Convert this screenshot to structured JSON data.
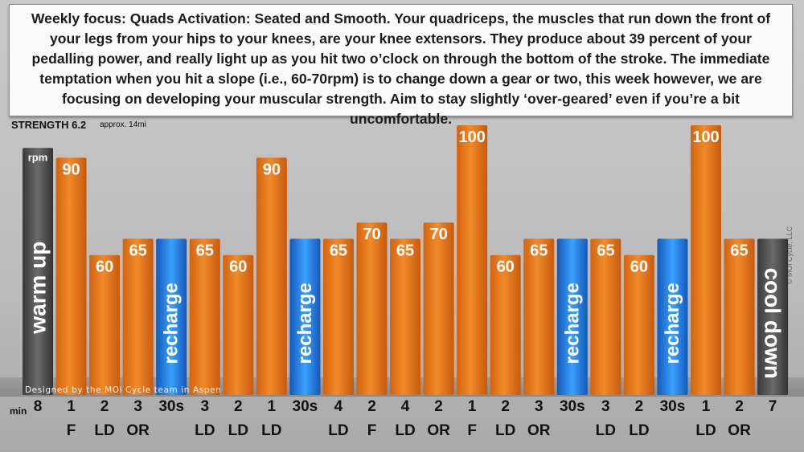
{
  "header": {
    "focus_text": "Weekly focus: Quads Activation: Seated and Smooth. Your quadriceps, the muscles that run down the front of your legs from your hips to your knees, are your knee extensors. They produce about 39 percent of your pedalling power, and really light up as you hit two o’clock on through the bottom of the stroke. The immediate temptation when you hit a slope (i.e., 60-70rpm) is to change down a gear or two, this week however, we are focusing on developing your muscular strength. Aim to stay slightly ‘over-geared’ even if you’re a bit uncomfortable.",
    "workout_title": "STRENGTH 6.2",
    "distance": "approx. 14mi"
  },
  "credit": "Designed by the MOi Cycle team in Aspen",
  "copyright": "© MOi Cycle, LLC",
  "row_label": "min",
  "unit_label": "rpm",
  "colors": {
    "effort": "#e8781e",
    "recharge": "#1e7fe0",
    "warmup": "#4a4a4a"
  },
  "chart_data": {
    "type": "bar",
    "title": "STRENGTH 6.2",
    "xlabel": "min",
    "ylabel": "rpm",
    "ylim": [
      0,
      100
    ],
    "segments": [
      {
        "kind": "warmup",
        "label": "warm up",
        "duration": "8",
        "position": ""
      },
      {
        "kind": "effort",
        "rpm": 90,
        "duration": "1",
        "position": "F"
      },
      {
        "kind": "effort",
        "rpm": 60,
        "duration": "2",
        "position": "LD"
      },
      {
        "kind": "effort",
        "rpm": 65,
        "duration": "3",
        "position": "OR"
      },
      {
        "kind": "recharge",
        "label": "recharge",
        "duration": "30s",
        "position": ""
      },
      {
        "kind": "effort",
        "rpm": 65,
        "duration": "3",
        "position": "LD"
      },
      {
        "kind": "effort",
        "rpm": 60,
        "duration": "2",
        "position": "LD"
      },
      {
        "kind": "effort",
        "rpm": 90,
        "duration": "1",
        "position": "LD"
      },
      {
        "kind": "recharge",
        "label": "recharge",
        "duration": "30s",
        "position": ""
      },
      {
        "kind": "effort",
        "rpm": 65,
        "duration": "4",
        "position": "LD"
      },
      {
        "kind": "effort",
        "rpm": 70,
        "duration": "2",
        "position": "F"
      },
      {
        "kind": "effort",
        "rpm": 65,
        "duration": "4",
        "position": "LD"
      },
      {
        "kind": "effort",
        "rpm": 70,
        "duration": "2",
        "position": "OR"
      },
      {
        "kind": "effort",
        "rpm": 100,
        "duration": "1",
        "position": "F"
      },
      {
        "kind": "effort",
        "rpm": 60,
        "duration": "2",
        "position": "LD"
      },
      {
        "kind": "effort",
        "rpm": 65,
        "duration": "3",
        "position": "OR"
      },
      {
        "kind": "recharge",
        "label": "recharge",
        "duration": "30s",
        "position": ""
      },
      {
        "kind": "effort",
        "rpm": 65,
        "duration": "3",
        "position": "LD"
      },
      {
        "kind": "effort",
        "rpm": 60,
        "duration": "2",
        "position": "LD"
      },
      {
        "kind": "recharge",
        "label": "recharge",
        "duration": "30s",
        "position": ""
      },
      {
        "kind": "effort",
        "rpm": 100,
        "duration": "1",
        "position": "LD"
      },
      {
        "kind": "effort",
        "rpm": 65,
        "duration": "2",
        "position": "OR"
      },
      {
        "kind": "cooldown",
        "label": "cool down",
        "duration": "7",
        "position": ""
      }
    ]
  }
}
